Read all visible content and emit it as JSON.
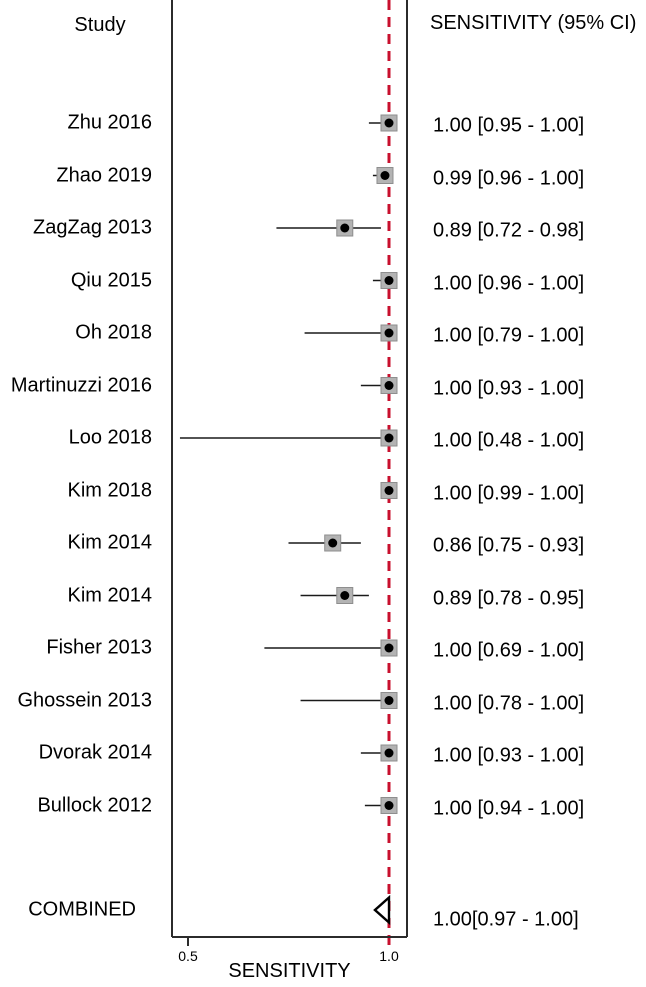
{
  "header": {
    "study_col": "Study",
    "ci_col": "SENSITIVITY (95% CI)"
  },
  "colors": {
    "reference_line": "#c8102e",
    "marker_square_fill": "#b3b3b3",
    "marker_square_border": "#8e8e8e",
    "marker_dot": "#000000",
    "axis_line": "#2b2b2b",
    "whisker": "#1a1a1a",
    "text": "#000000",
    "combined_fill": "#ffffff",
    "combined_stroke": "#000000"
  },
  "chart_data": {
    "type": "forest",
    "title": "",
    "xlabel": "SENSITIVITY",
    "right_column_header": "SENSITIVITY (95% CI)",
    "xlim": [
      0.46,
      1.045
    ],
    "reference_line_value": 1.0,
    "ticks": [
      {
        "value": 0.5,
        "label": "0.5"
      },
      {
        "value": 1.0,
        "label": "1.0"
      }
    ],
    "studies": [
      {
        "name": "Zhu 2016",
        "estimate": 1.0,
        "ci_low": 0.95,
        "ci_high": 1.0,
        "label": "1.00 [0.95 - 1.00]"
      },
      {
        "name": "Zhao 2019",
        "estimate": 0.99,
        "ci_low": 0.96,
        "ci_high": 1.0,
        "label": "0.99 [0.96 - 1.00]"
      },
      {
        "name": "ZagZag 2013",
        "estimate": 0.89,
        "ci_low": 0.72,
        "ci_high": 0.98,
        "label": "0.89 [0.72 - 0.98]"
      },
      {
        "name": "Qiu 2015",
        "estimate": 1.0,
        "ci_low": 0.96,
        "ci_high": 1.0,
        "label": "1.00 [0.96 - 1.00]"
      },
      {
        "name": "Oh 2018",
        "estimate": 1.0,
        "ci_low": 0.79,
        "ci_high": 1.0,
        "label": "1.00 [0.79 - 1.00]"
      },
      {
        "name": "Martinuzzi 2016",
        "estimate": 1.0,
        "ci_low": 0.93,
        "ci_high": 1.0,
        "label": "1.00 [0.93 - 1.00]"
      },
      {
        "name": "Loo 2018",
        "estimate": 1.0,
        "ci_low": 0.48,
        "ci_high": 1.0,
        "label": "1.00 [0.48 - 1.00]"
      },
      {
        "name": "Kim 2018",
        "estimate": 1.0,
        "ci_low": 0.99,
        "ci_high": 1.0,
        "label": "1.00 [0.99 - 1.00]"
      },
      {
        "name": "Kim 2014",
        "estimate": 0.86,
        "ci_low": 0.75,
        "ci_high": 0.93,
        "label": "0.86 [0.75 - 0.93]"
      },
      {
        "name": "Kim 2014",
        "estimate": 0.89,
        "ci_low": 0.78,
        "ci_high": 0.95,
        "label": "0.89 [0.78 - 0.95]"
      },
      {
        "name": "Fisher 2013",
        "estimate": 1.0,
        "ci_low": 0.69,
        "ci_high": 1.0,
        "label": "1.00 [0.69 - 1.00]"
      },
      {
        "name": "Ghossein 2013",
        "estimate": 1.0,
        "ci_low": 0.78,
        "ci_high": 1.0,
        "label": "1.00 [0.78 - 1.00]"
      },
      {
        "name": "Dvorak 2014",
        "estimate": 1.0,
        "ci_low": 0.93,
        "ci_high": 1.0,
        "label": "1.00 [0.93 - 1.00]"
      },
      {
        "name": "Bullock 2012",
        "estimate": 1.0,
        "ci_low": 0.94,
        "ci_high": 1.0,
        "label": "1.00 [0.94 - 1.00]"
      }
    ],
    "combined": {
      "name": "COMBINED",
      "estimate": 1.0,
      "ci_low": 0.97,
      "ci_high": 1.0,
      "label": "1.00[0.97 - 1.00]"
    }
  }
}
